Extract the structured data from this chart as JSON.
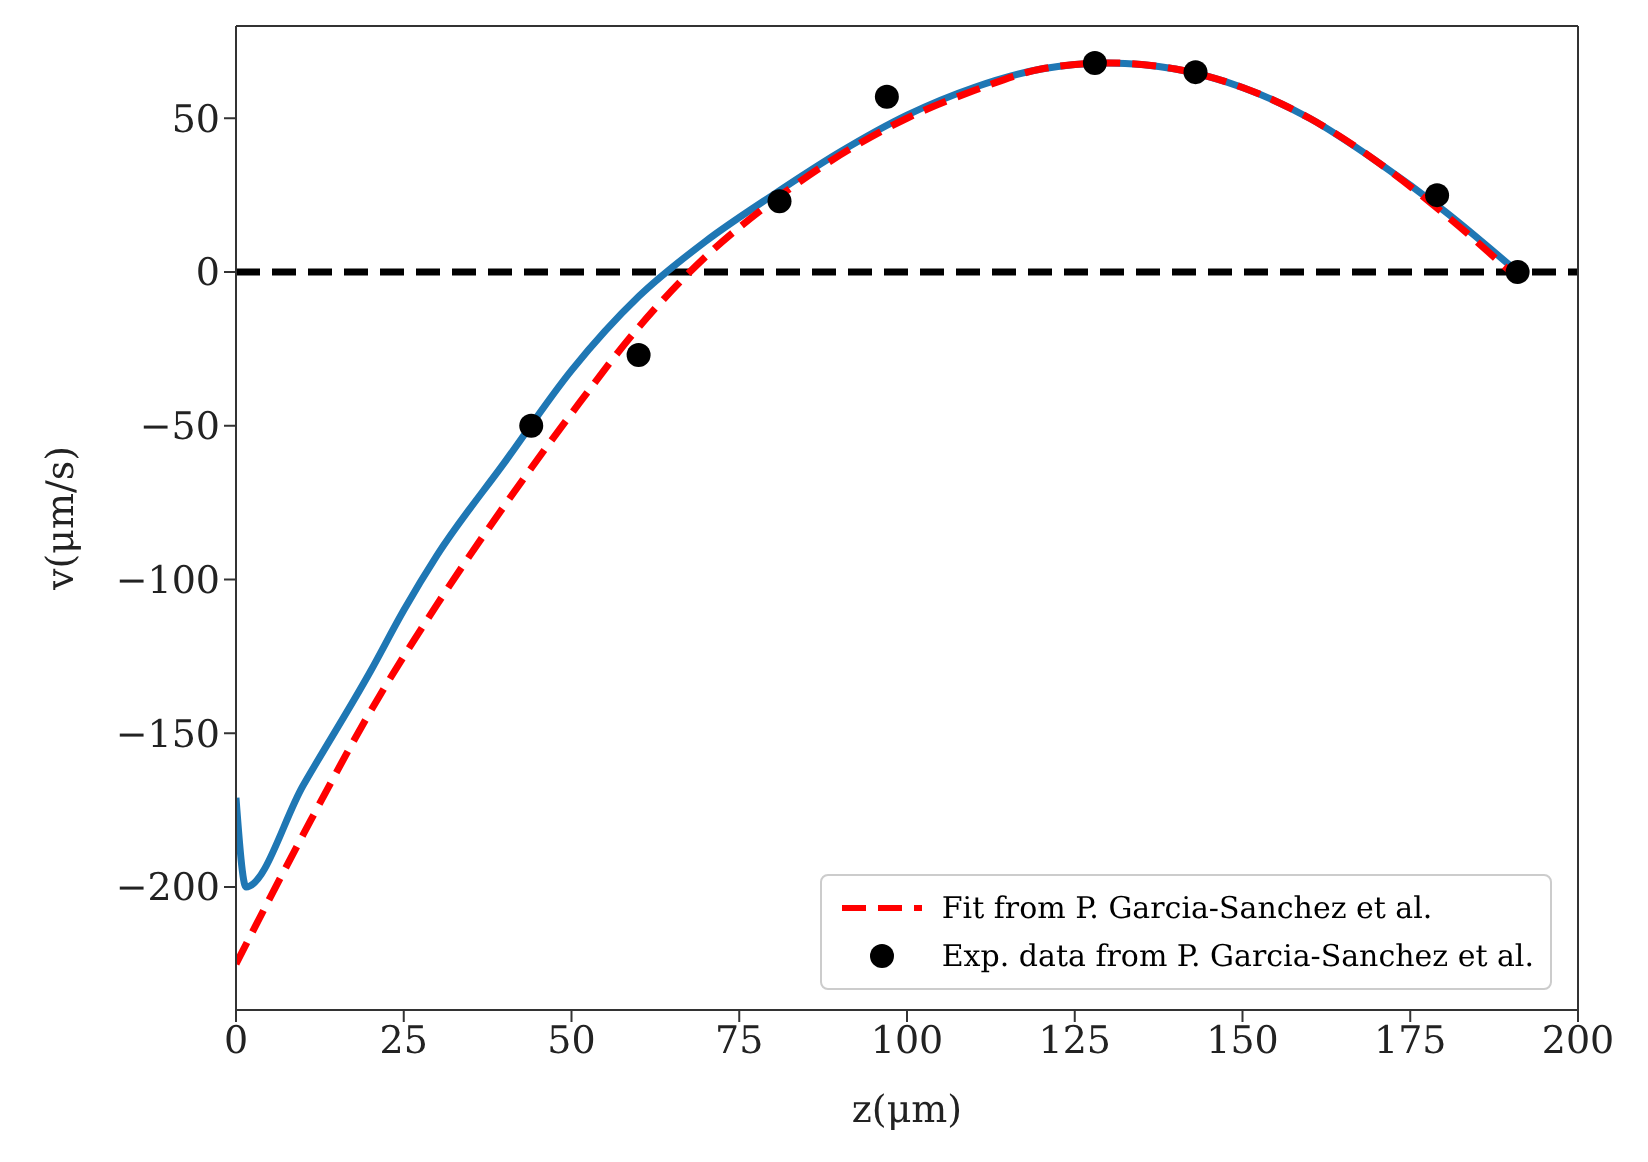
{
  "chart_data": {
    "type": "line",
    "xlabel": "z(μm)",
    "ylabel": "v(μm/s)",
    "xlim": [
      0,
      200
    ],
    "ylim": [
      -240,
      80
    ],
    "xticks": [
      0,
      25,
      50,
      75,
      100,
      125,
      150,
      175,
      200
    ],
    "yticks": [
      -200,
      -150,
      -100,
      -50,
      0,
      50
    ],
    "grid": false,
    "legend": "bottom right",
    "series": [
      {
        "color": "#1f77b4",
        "line_style": "solid",
        "marker": "none",
        "x": [
          0,
          1.5,
          10,
          20,
          25,
          30,
          40,
          50,
          60,
          70,
          80,
          90,
          100,
          110,
          120,
          130,
          140,
          150,
          160,
          170,
          180,
          191
        ],
        "values": [
          -171,
          -200,
          -167,
          -130,
          -110,
          -92,
          -62,
          -32,
          -8,
          10,
          25,
          39,
          51,
          60,
          66,
          68,
          66,
          60,
          50,
          36,
          20,
          0
        ]
      },
      {
        "name": "Fit from P. Garcia-Sanchez et al.",
        "color": "#ff0000",
        "line_style": "dashed",
        "marker": "none",
        "x": [
          0,
          10,
          20,
          30,
          40,
          50,
          60,
          70,
          80,
          90,
          100,
          110,
          120,
          130,
          140,
          150,
          160,
          170,
          180,
          190
        ],
        "values": [
          -225,
          -183,
          -143,
          -108,
          -76,
          -46,
          -18,
          5,
          23,
          38,
          50,
          59,
          66,
          68,
          66,
          60,
          50,
          36,
          19,
          0
        ]
      },
      {
        "type": "scatter",
        "name": "Exp. data from P. Garcia-Sanchez et al.",
        "color": "#000000",
        "marker": "circle",
        "x": [
          44,
          60,
          81,
          97,
          128,
          143,
          179,
          191
        ],
        "values": [
          -50,
          -27,
          23,
          57,
          68,
          65,
          25,
          0
        ]
      }
    ],
    "ref_lines": [
      {
        "axis": "y",
        "value": 0,
        "color": "#000000",
        "line_style": "dashed"
      }
    ]
  }
}
